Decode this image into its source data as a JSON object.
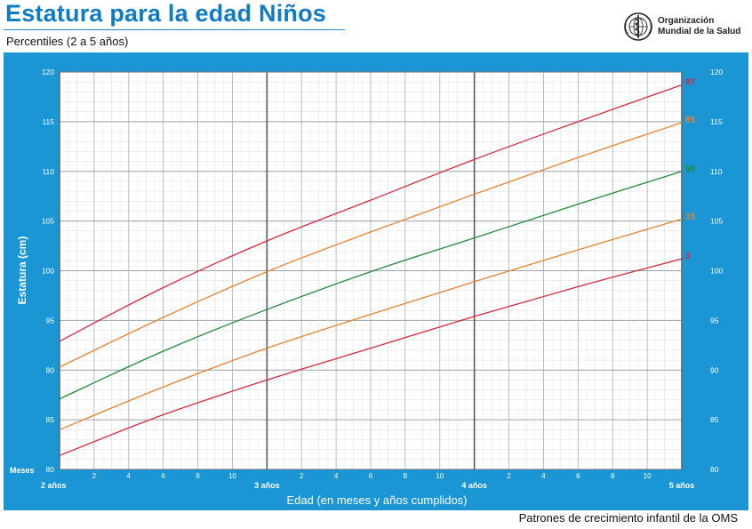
{
  "header": {
    "title": "Estatura para la edad Niños",
    "subtitle": "Percentiles (2 a 5 años)",
    "org_line1": "Organización",
    "org_line2": "Mundial de la Salud",
    "footer": "Patrones de crecimiento infantil de la OMS"
  },
  "colors": {
    "panel": "#1a96d4",
    "p3": "#d6283c",
    "p15": "#e8822a",
    "p50": "#1e8a3a",
    "p85": "#e8822a",
    "p97": "#d6283c"
  },
  "icons": {
    "org_logo": "who-emblem-icon"
  },
  "chart_data": {
    "type": "line",
    "xlabel": "Edad (en meses y años cumplidos)",
    "ylabel": "Estatura (cm)",
    "xlim": [
      24,
      60
    ],
    "ylim": [
      80,
      120
    ],
    "yticks": [
      80,
      85,
      90,
      95,
      100,
      105,
      110,
      115,
      120
    ],
    "month_ticks": [
      {
        "x": 26,
        "label": "2"
      },
      {
        "x": 28,
        "label": "4"
      },
      {
        "x": 30,
        "label": "6"
      },
      {
        "x": 32,
        "label": "8"
      },
      {
        "x": 34,
        "label": "10"
      },
      {
        "x": 38,
        "label": "2"
      },
      {
        "x": 40,
        "label": "4"
      },
      {
        "x": 42,
        "label": "6"
      },
      {
        "x": 44,
        "label": "8"
      },
      {
        "x": 46,
        "label": "10"
      },
      {
        "x": 50,
        "label": "2"
      },
      {
        "x": 52,
        "label": "4"
      },
      {
        "x": 54,
        "label": "6"
      },
      {
        "x": 56,
        "label": "8"
      },
      {
        "x": 58,
        "label": "10"
      }
    ],
    "year_ticks": [
      {
        "x": 24,
        "label": "2 años"
      },
      {
        "x": 36,
        "label": "3 años"
      },
      {
        "x": 48,
        "label": "4 años"
      },
      {
        "x": 60,
        "label": "5 años"
      }
    ],
    "months_label": "Meses",
    "grid": true,
    "x": [
      24,
      30,
      36,
      42,
      48,
      54,
      60
    ],
    "series": [
      {
        "name": "97",
        "color_key": "p97",
        "values": [
          92.9,
          98.3,
          103.0,
          107.1,
          111.2,
          115.0,
          118.7
        ]
      },
      {
        "name": "85",
        "color_key": "p85",
        "values": [
          90.3,
          95.3,
          99.9,
          103.9,
          107.7,
          111.4,
          114.9
        ]
      },
      {
        "name": "50",
        "color_key": "p50",
        "values": [
          87.1,
          91.9,
          96.1,
          99.9,
          103.3,
          106.7,
          110.0
        ]
      },
      {
        "name": "15",
        "color_key": "p15",
        "values": [
          84.0,
          88.3,
          92.2,
          95.6,
          98.9,
          102.1,
          105.2
        ]
      },
      {
        "name": "3",
        "color_key": "p3",
        "values": [
          81.4,
          85.5,
          89.0,
          92.2,
          95.4,
          98.4,
          101.2
        ]
      }
    ]
  }
}
